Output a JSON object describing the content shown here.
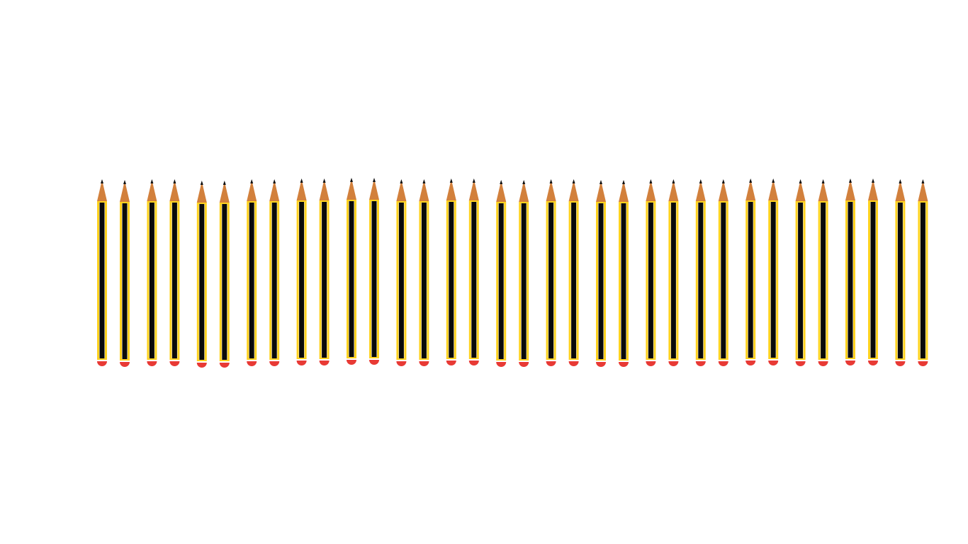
{
  "scene": {
    "subject": "pencil",
    "pencil_count": 34,
    "arrangement": "pairs",
    "pair_count": 17,
    "orientation": "tip-up"
  },
  "colors": {
    "background": "#ffffff",
    "pencil_body_stripe": "#ffd21f",
    "pencil_body_core": "#0a0a0a",
    "pencil_body_highlight": "#ffffff",
    "pencil_wood": "#d2803c",
    "pencil_lead": "#111111",
    "eraser": "#e83a35",
    "ferrule_gap": "#ffffff"
  }
}
